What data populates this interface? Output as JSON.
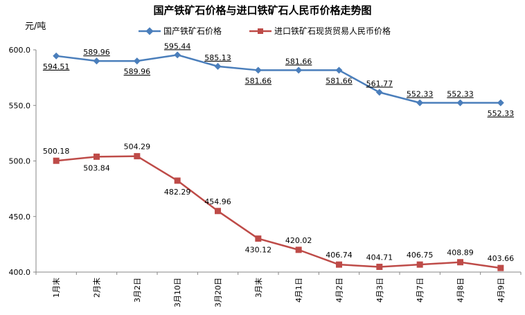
{
  "chart_data": {
    "type": "line",
    "title": "国产铁矿石价格与进口铁矿石人民币价格走势图",
    "ylabel": "元/吨",
    "ylim": [
      400,
      600
    ],
    "yticks": [
      "400.0",
      "450.0",
      "500.0",
      "550.0",
      "600.0"
    ],
    "categories": [
      "1月末",
      "2月末",
      "3月2日",
      "3月10日",
      "3月20日",
      "3月末",
      "4月1日",
      "4月2日",
      "4月3日",
      "4月7日",
      "4月8日",
      "4月9日"
    ],
    "series": [
      {
        "name": "国产铁矿石价格",
        "color": "#4A7EBB",
        "marker": "diamond",
        "values": [
          594.51,
          589.96,
          589.96,
          595.44,
          585.13,
          581.66,
          581.66,
          581.66,
          561.77,
          552.33,
          552.33,
          552.33
        ],
        "labels": [
          "594.51",
          "589.96",
          "589.96",
          "595.44",
          "585.13",
          "581.66",
          "581.66",
          "581.66",
          "561.77",
          "552.33",
          "552.33",
          "552.33"
        ]
      },
      {
        "name": "进口铁矿石现货贸易人民币价格",
        "color": "#BE4B48",
        "marker": "square",
        "values": [
          500.18,
          503.84,
          504.29,
          482.29,
          454.96,
          430.12,
          420.02,
          406.74,
          404.71,
          406.75,
          408.89,
          403.66
        ],
        "labels": [
          "500.18",
          "503.84",
          "504.29",
          "482.29",
          "454.96",
          "430.12",
          "420.02",
          "406.74",
          "404.71",
          "406.75",
          "408.89",
          "403.66"
        ]
      }
    ],
    "grid": false,
    "legend": "top"
  }
}
